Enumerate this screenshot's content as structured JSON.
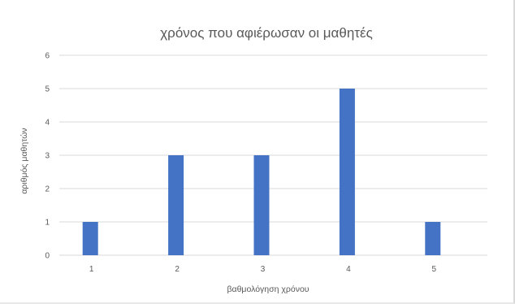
{
  "chart_data": {
    "type": "bar",
    "title": "χρόνος που αφιέρωσαν οι μαθητές",
    "xlabel": "βαθμολόγηση χρόνου",
    "ylabel": "αριθμός μαθητών",
    "categories": [
      "1",
      "2",
      "3",
      "4",
      "5"
    ],
    "values": [
      1,
      3,
      3,
      5,
      1
    ],
    "ylim": [
      0,
      6
    ],
    "yticks": [
      "0",
      "1",
      "2",
      "3",
      "4",
      "5",
      "6"
    ],
    "grid": true,
    "legend": "none",
    "bar_color": "#4472c4",
    "grid_color": "#d9d9d9"
  }
}
